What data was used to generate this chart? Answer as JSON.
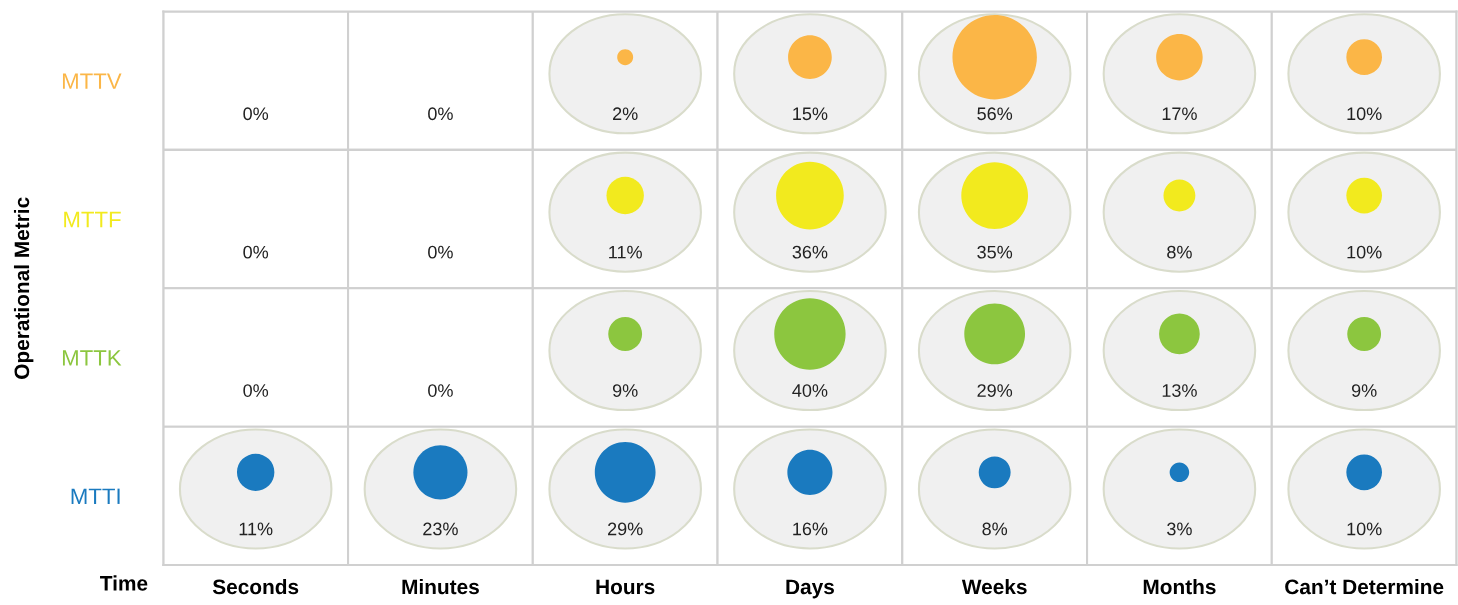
{
  "chart_data": {
    "type": "heatmap",
    "ylabel": "Operational Metric",
    "xlabel": "Time",
    "categories": [
      "Seconds",
      "Minutes",
      "Hours",
      "Days",
      "Weeks",
      "Months",
      "Can’t Determine"
    ],
    "y_categories": [
      "MTTV",
      "MTTF",
      "MTTK",
      "MTTI"
    ],
    "colors": [
      "#fbb647",
      "#f2ea1e",
      "#8cc63f",
      "#1a7abf"
    ],
    "cells": [
      [
        0,
        0,
        2,
        15,
        56,
        17,
        10
      ],
      [
        0,
        0,
        11,
        36,
        35,
        8,
        10
      ],
      [
        0,
        0,
        9,
        40,
        29,
        13,
        9
      ],
      [
        11,
        23,
        29,
        16,
        8,
        3,
        10
      ]
    ],
    "cell_labels": [
      [
        "0%",
        "0%",
        "2%",
        "15%",
        "56%",
        "17%",
        "10%"
      ],
      [
        "0%",
        "0%",
        "11%",
        "36%",
        "35%",
        "8%",
        "10%"
      ],
      [
        "0%",
        "0%",
        "9%",
        "40%",
        "29%",
        "13%",
        "9%"
      ],
      [
        "11%",
        "23%",
        "29%",
        "16%",
        "8%",
        "3%",
        "10%"
      ]
    ],
    "legend": false
  }
}
